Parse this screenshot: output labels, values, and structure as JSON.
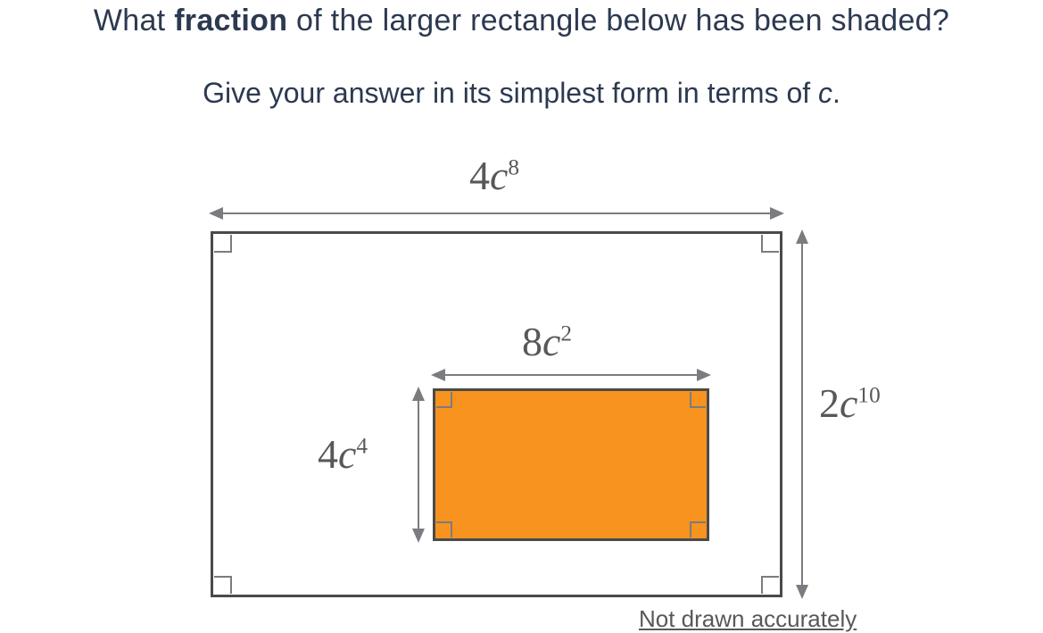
{
  "question": {
    "line1_pre": "What ",
    "line1_bold": "fraction",
    "line1_post": " of the larger rectangle below has been shaded?",
    "line2_pre": "Give your answer in its simplest form in terms of ",
    "line2_var": "c",
    "line2_post": "."
  },
  "outer": {
    "width_coef": "4",
    "width_var": "c",
    "width_exp": "8",
    "height_coef": "2",
    "height_var": "c",
    "height_exp": "10"
  },
  "inner": {
    "width_coef": "8",
    "width_var": "c",
    "width_exp": "2",
    "height_coef": "4",
    "height_var": "c",
    "height_exp": "4",
    "fill_color": "#f7931e"
  },
  "note": "Not drawn accurately",
  "style": {
    "text_color": "#2c3950",
    "dim_color": "#585858",
    "border_color": "#4a4a4a",
    "arrow_color": "#7a7c7f",
    "question_fontsize": 34,
    "subquestion_fontsize": 32,
    "dim_fontsize": 46
  }
}
